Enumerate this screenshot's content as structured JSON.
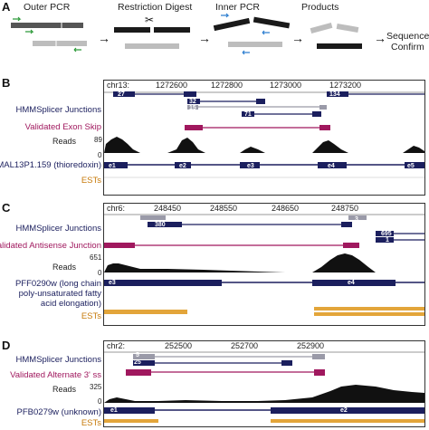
{
  "panelA": {
    "letter": "A",
    "steps": [
      "Outer PCR",
      "Restriction Digest",
      "Inner PCR",
      "Products"
    ],
    "final_step": [
      "Sequence",
      "Confirm"
    ],
    "arrow": "→",
    "scissors": "✂"
  },
  "panelB": {
    "letter": "B",
    "chr": "chr13:",
    "ticks": [
      "1272600",
      "1272800",
      "1273000",
      "1273200"
    ],
    "tracks": {
      "hmm": "HMMSplicer Junctions",
      "validated": "Validated Exon Skip",
      "reads": "Reads",
      "reads_max": "89",
      "reads_min": "0",
      "gene": "MAL13P1.159 (thioredoxin)",
      "ests": "ESTs"
    },
    "junctions": [
      "27",
      "32",
      "15",
      "71",
      "134"
    ],
    "exons": [
      "e1",
      "e2",
      "e3",
      "e4",
      "e5"
    ]
  },
  "panelC": {
    "letter": "C",
    "chr": "chr6:",
    "ticks": [
      "248450",
      "248550",
      "248650",
      "248750"
    ],
    "tracks": {
      "hmm": "HMMSplicer Junctions",
      "validated": "Validated Antisense Junction",
      "reads": "Reads",
      "reads_max": "651",
      "reads_min": "0",
      "gene_lines": [
        "PFF0290w (long chain",
        "poly-unsaturated fatty",
        "acid elongation)"
      ],
      "ests": "ESTs"
    },
    "junctions": [
      "380",
      "3",
      "695",
      "1"
    ],
    "exons": [
      "e3",
      "e4"
    ]
  },
  "panelD": {
    "letter": "D",
    "chr": "chr2:",
    "ticks": [
      "252500",
      "252700",
      "252900"
    ],
    "tracks": {
      "hmm": "HMMSplicer Junctions",
      "validated": "Validated Alternate 3' ss",
      "reads": "Reads",
      "reads_max": "325",
      "reads_min": "0",
      "gene": "PFB0279w (unknown)",
      "ests": "ESTs"
    },
    "junctions": [
      "5",
      "25"
    ],
    "exons": [
      "e1",
      "e2"
    ]
  },
  "colors": {
    "navy": "#1b1f5e",
    "purple": "#a0185e",
    "orange": "#e3a53a",
    "gray": "#9a9aa8",
    "green": "#2e9b3a",
    "blue": "#2e7fd0"
  }
}
